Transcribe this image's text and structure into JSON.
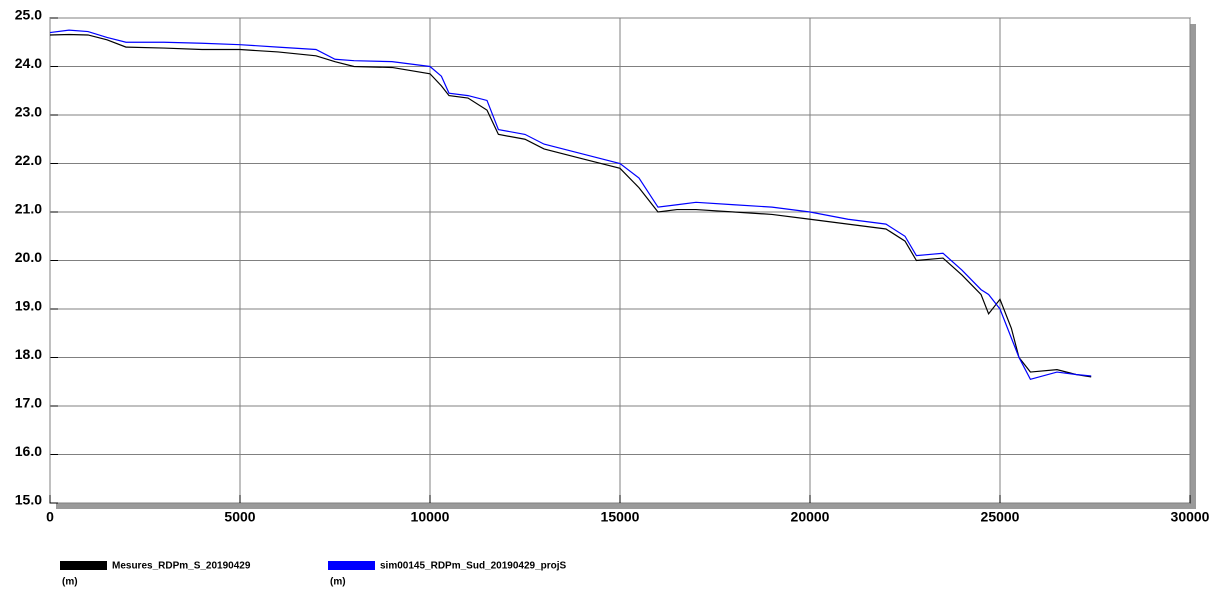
{
  "chart_data": {
    "type": "line",
    "x": [
      0,
      500,
      1000,
      1500,
      2000,
      3000,
      4000,
      5000,
      6000,
      7000,
      7500,
      8000,
      9000,
      10000,
      10300,
      10500,
      11000,
      11500,
      11800,
      12500,
      13000,
      14000,
      15000,
      15500,
      16000,
      16500,
      17000,
      18000,
      19000,
      20000,
      21000,
      22000,
      22500,
      22800,
      23500,
      24000,
      24500,
      24700,
      25000,
      25300,
      25500,
      25800,
      26500,
      27000,
      27400
    ],
    "series": [
      {
        "name": "Mesures_RDPm_S_20190429",
        "unit": "(m)",
        "color": "#000000",
        "values": [
          24.65,
          24.66,
          24.65,
          24.55,
          24.4,
          24.38,
          24.35,
          24.35,
          24.3,
          24.22,
          24.1,
          24.0,
          23.98,
          23.85,
          23.6,
          23.4,
          23.35,
          23.1,
          22.6,
          22.5,
          22.3,
          22.1,
          21.9,
          21.5,
          21.0,
          21.05,
          21.05,
          21.0,
          20.95,
          20.85,
          20.75,
          20.65,
          20.4,
          20.0,
          20.05,
          19.7,
          19.3,
          18.9,
          19.2,
          18.6,
          18.0,
          17.7,
          17.75,
          17.65,
          17.6
        ]
      },
      {
        "name": "sim00145_RDPm_Sud_20190429_projS",
        "unit": "(m)",
        "color": "#0000ff",
        "values": [
          24.7,
          24.75,
          24.72,
          24.6,
          24.5,
          24.5,
          24.48,
          24.45,
          24.4,
          24.35,
          24.15,
          24.12,
          24.1,
          24.0,
          23.8,
          23.45,
          23.4,
          23.3,
          22.7,
          22.6,
          22.4,
          22.2,
          22.0,
          21.7,
          21.1,
          21.15,
          21.2,
          21.15,
          21.1,
          21.0,
          20.85,
          20.75,
          20.5,
          20.1,
          20.15,
          19.8,
          19.4,
          19.3,
          19.0,
          18.4,
          18.0,
          17.55,
          17.7,
          17.65,
          17.62
        ]
      }
    ],
    "xlim": [
      0,
      30000
    ],
    "xticks": [
      0,
      5000,
      10000,
      15000,
      20000,
      25000,
      30000
    ],
    "ylim": [
      15,
      25
    ],
    "yticks": [
      {
        "value": 15,
        "label": "15.0"
      },
      {
        "value": 16,
        "label": "16.0"
      },
      {
        "value": 17,
        "label": "17.0"
      },
      {
        "value": 18,
        "label": "18.0"
      },
      {
        "value": 19,
        "label": "19.0"
      },
      {
        "value": 20,
        "label": "20.0"
      },
      {
        "value": 21,
        "label": "21.0"
      },
      {
        "value": 22,
        "label": "22.0"
      },
      {
        "value": 23,
        "label": "23.0"
      },
      {
        "value": 24,
        "label": "24.0"
      },
      {
        "value": 25,
        "label": "25.0"
      }
    ],
    "grid": true
  }
}
